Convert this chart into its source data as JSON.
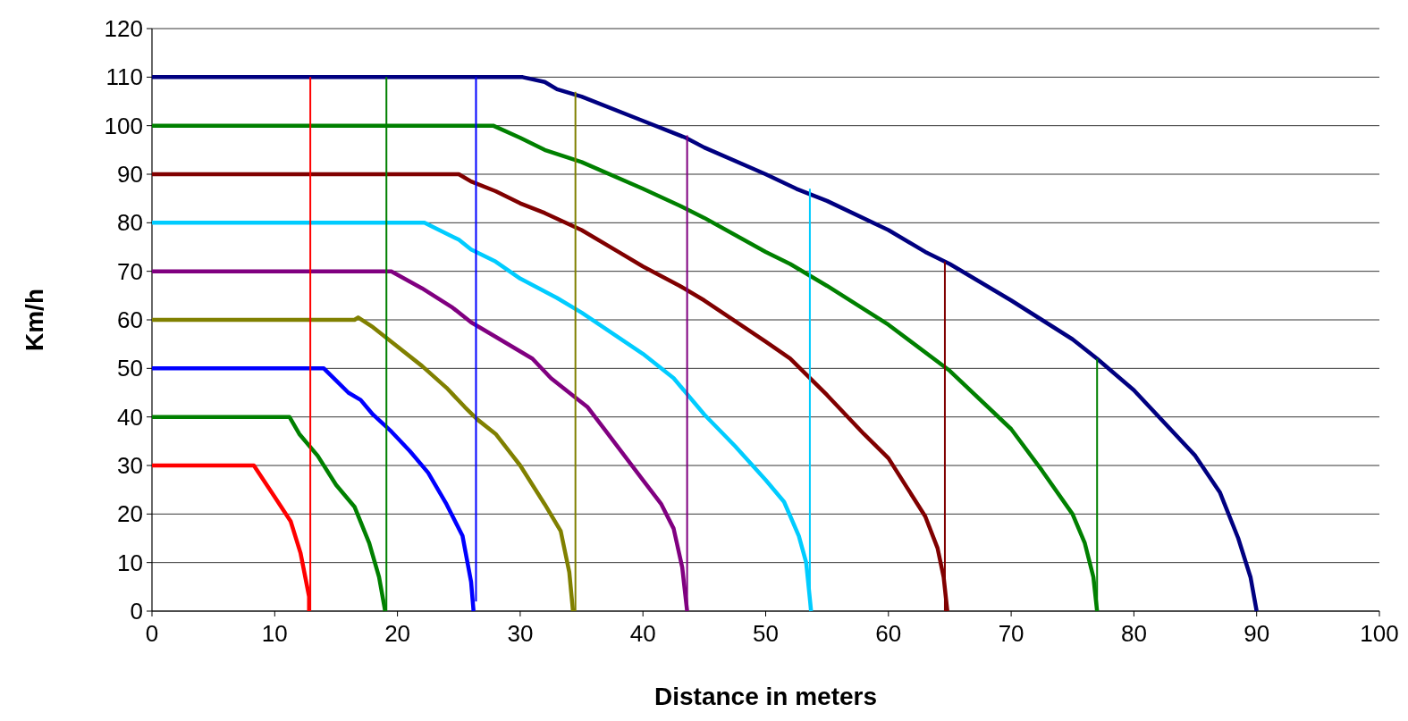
{
  "chart_data": {
    "type": "line",
    "xlabel": "Distance in meters",
    "ylabel": "Km/h",
    "xlim": [
      0,
      100
    ],
    "ylim": [
      0,
      120
    ],
    "xticks": [
      0,
      10,
      20,
      30,
      40,
      50,
      60,
      70,
      80,
      90,
      100
    ],
    "yticks": [
      0,
      10,
      20,
      30,
      40,
      50,
      60,
      70,
      80,
      90,
      100,
      110,
      120
    ],
    "grid": "y",
    "marker": "none",
    "line_style": "solid",
    "series": [
      {
        "color": "#ff0000",
        "x": [
          0,
          8.3,
          10,
          11.3,
          12.1,
          12.8,
          12.8
        ],
        "values": [
          30,
          30,
          23.5,
          18.5,
          12,
          3,
          0
        ]
      },
      {
        "color": "#008000",
        "x": [
          0,
          11.2,
          12,
          13.5,
          15,
          16.5,
          17.7,
          18.5,
          19
        ],
        "values": [
          40,
          40,
          36.5,
          32,
          26,
          21.5,
          14,
          7,
          0
        ]
      },
      {
        "color": "#0000ff",
        "x": [
          0,
          14,
          15,
          16,
          17,
          18,
          19.5,
          21,
          22.5,
          24,
          25.3,
          26,
          26.2
        ],
        "values": [
          50,
          50,
          47.5,
          45,
          43.5,
          40.5,
          37,
          33,
          28.5,
          22,
          15.5,
          6,
          0
        ]
      },
      {
        "color": "#808000",
        "x": [
          0,
          16.5,
          16.8,
          18,
          19.5,
          22,
          24,
          25.5,
          26.5,
          28,
          30,
          32,
          33.3,
          34,
          34.3
        ],
        "values": [
          60,
          60,
          60.5,
          58.5,
          55.5,
          50.5,
          46,
          42,
          39.5,
          36.5,
          30,
          22,
          16.5,
          8,
          0
        ]
      },
      {
        "color": "#800080",
        "x": [
          0,
          19.5,
          22,
          24.5,
          26,
          28,
          31,
          32.5,
          34.5,
          35.5,
          37,
          40,
          41.5,
          42.5,
          43.2,
          43.6
        ],
        "values": [
          70,
          70,
          66.5,
          62.5,
          59.5,
          56.5,
          52,
          48,
          44,
          42,
          37,
          27,
          22,
          17,
          9,
          0
        ]
      },
      {
        "color": "#00ccff",
        "x": [
          0,
          22.2,
          25,
          26,
          28,
          30,
          33,
          35,
          40,
          42.5,
          45,
          47.5,
          50,
          51.5,
          52.7,
          53.3,
          53.7
        ],
        "values": [
          80,
          80,
          76.5,
          74.5,
          72,
          68.5,
          64.5,
          61.5,
          53,
          48,
          40.5,
          34,
          27,
          22.5,
          15.5,
          10,
          0
        ]
      },
      {
        "color": "#800000",
        "x": [
          0,
          25,
          26,
          28,
          30,
          32,
          35,
          38,
          40,
          43,
          45,
          50,
          52,
          55,
          58,
          60,
          63,
          64,
          64.5,
          64.8
        ],
        "values": [
          90,
          90,
          88.5,
          86.5,
          84,
          82,
          78.5,
          74,
          71,
          67,
          64,
          55.5,
          52,
          44.5,
          36.5,
          31.5,
          19.5,
          13,
          7,
          0
        ]
      },
      {
        "color": "#008000",
        "x": [
          0,
          27.8,
          30,
          32,
          35,
          40,
          43,
          45,
          50,
          52,
          55,
          60,
          65,
          70,
          72.5,
          75,
          76,
          76.7,
          77
        ],
        "values": [
          100,
          100,
          97.5,
          95,
          92.5,
          87,
          83.5,
          81,
          74,
          71.5,
          67,
          59,
          49.5,
          37.5,
          29,
          20,
          14,
          7,
          0
        ]
      },
      {
        "color": "#000080",
        "x": [
          0,
          30.2,
          32,
          33,
          35,
          40,
          42,
          43.5,
          45,
          50,
          52.5,
          55,
          60,
          63,
          65,
          70,
          75,
          77,
          80,
          85,
          87,
          88.5,
          89.5,
          90
        ],
        "values": [
          110,
          110,
          109,
          107.5,
          106,
          101,
          99,
          97.5,
          95.5,
          90,
          87,
          84.5,
          78.5,
          74,
          71.5,
          64,
          56,
          52,
          45.5,
          32,
          24.5,
          15,
          7,
          0
        ]
      },
      {
        "color": "#ff0000",
        "x": [
          12.9,
          12.9
        ],
        "values": [
          0,
          110
        ]
      },
      {
        "color": "#008000",
        "x": [
          19.1,
          19.1
        ],
        "values": [
          0,
          110
        ]
      },
      {
        "color": "#0000ff",
        "x": [
          26.4,
          26.4
        ],
        "values": [
          2,
          110
        ]
      },
      {
        "color": "#808000",
        "x": [
          34.5,
          34.5
        ],
        "values": [
          0,
          107
        ]
      },
      {
        "color": "#800080",
        "x": [
          43.6,
          43.6
        ],
        "values": [
          0,
          98
        ]
      },
      {
        "color": "#00ccff",
        "x": [
          53.6,
          53.6
        ],
        "values": [
          0,
          87
        ]
      },
      {
        "color": "#800000",
        "x": [
          64.6,
          64.6
        ],
        "values": [
          0,
          72
        ]
      },
      {
        "color": "#008000",
        "x": [
          77,
          77
        ],
        "values": [
          0,
          52
        ]
      }
    ]
  }
}
